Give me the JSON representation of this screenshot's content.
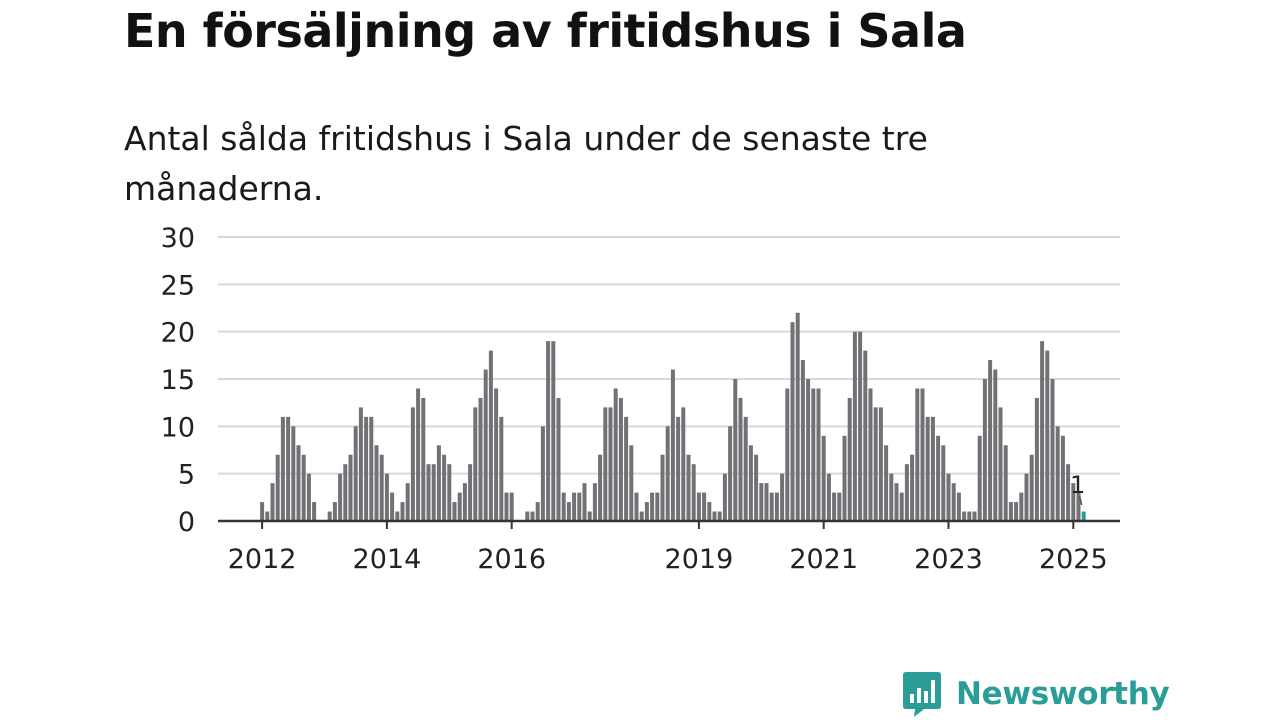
{
  "title": "En försäljning av fritidshus i Sala",
  "subtitle": "Antal sålda fritidshus i Sala under de senaste tre månaderna.",
  "brand": {
    "name": "Newsworthy",
    "logo_icon": "bar-chart-speech-bubble-icon",
    "color": "#2a9d97"
  },
  "colors": {
    "bar": "#717176",
    "highlight": "#2a9d97",
    "grid": "#d9d9d9",
    "axis": "#333333"
  },
  "chart_data": {
    "type": "bar",
    "x_start": "2011-01",
    "frequency": "monthly",
    "ylim": [
      0,
      30
    ],
    "yticks": [
      0,
      5,
      10,
      15,
      20,
      25,
      30
    ],
    "xticks": [
      "2012",
      "2014",
      "2016",
      "2019",
      "2021",
      "2023",
      "2025"
    ],
    "grid": true,
    "highlight_last": true,
    "last_value_label": "1",
    "values": [
      0,
      0,
      0,
      0,
      0,
      0,
      0,
      0,
      0,
      0,
      0,
      0,
      2,
      1,
      4,
      7,
      11,
      11,
      10,
      8,
      7,
      5,
      2,
      0,
      0,
      1,
      2,
      5,
      6,
      7,
      10,
      12,
      11,
      11,
      8,
      7,
      5,
      3,
      1,
      2,
      4,
      12,
      14,
      13,
      6,
      6,
      8,
      7,
      6,
      2,
      3,
      4,
      6,
      12,
      13,
      16,
      18,
      14,
      11,
      3,
      3,
      0,
      0,
      1,
      1,
      2,
      10,
      19,
      19,
      13,
      3,
      2,
      3,
      3,
      4,
      1,
      4,
      7,
      12,
      12,
      14,
      13,
      11,
      8,
      3,
      1,
      2,
      3,
      3,
      7,
      10,
      16,
      11,
      12,
      7,
      6,
      3,
      3,
      2,
      1,
      1,
      5,
      10,
      15,
      13,
      11,
      8,
      7,
      4,
      4,
      3,
      3,
      5,
      14,
      21,
      22,
      17,
      15,
      14,
      14,
      9,
      5,
      3,
      3,
      9,
      13,
      20,
      20,
      18,
      14,
      12,
      12,
      8,
      5,
      4,
      3,
      6,
      7,
      14,
      14,
      11,
      11,
      9,
      8,
      5,
      4,
      3,
      1,
      1,
      1,
      9,
      15,
      17,
      16,
      12,
      8,
      2,
      2,
      3,
      5,
      7,
      13,
      19,
      18,
      15,
      10,
      9,
      6,
      4,
      3,
      1
    ]
  }
}
